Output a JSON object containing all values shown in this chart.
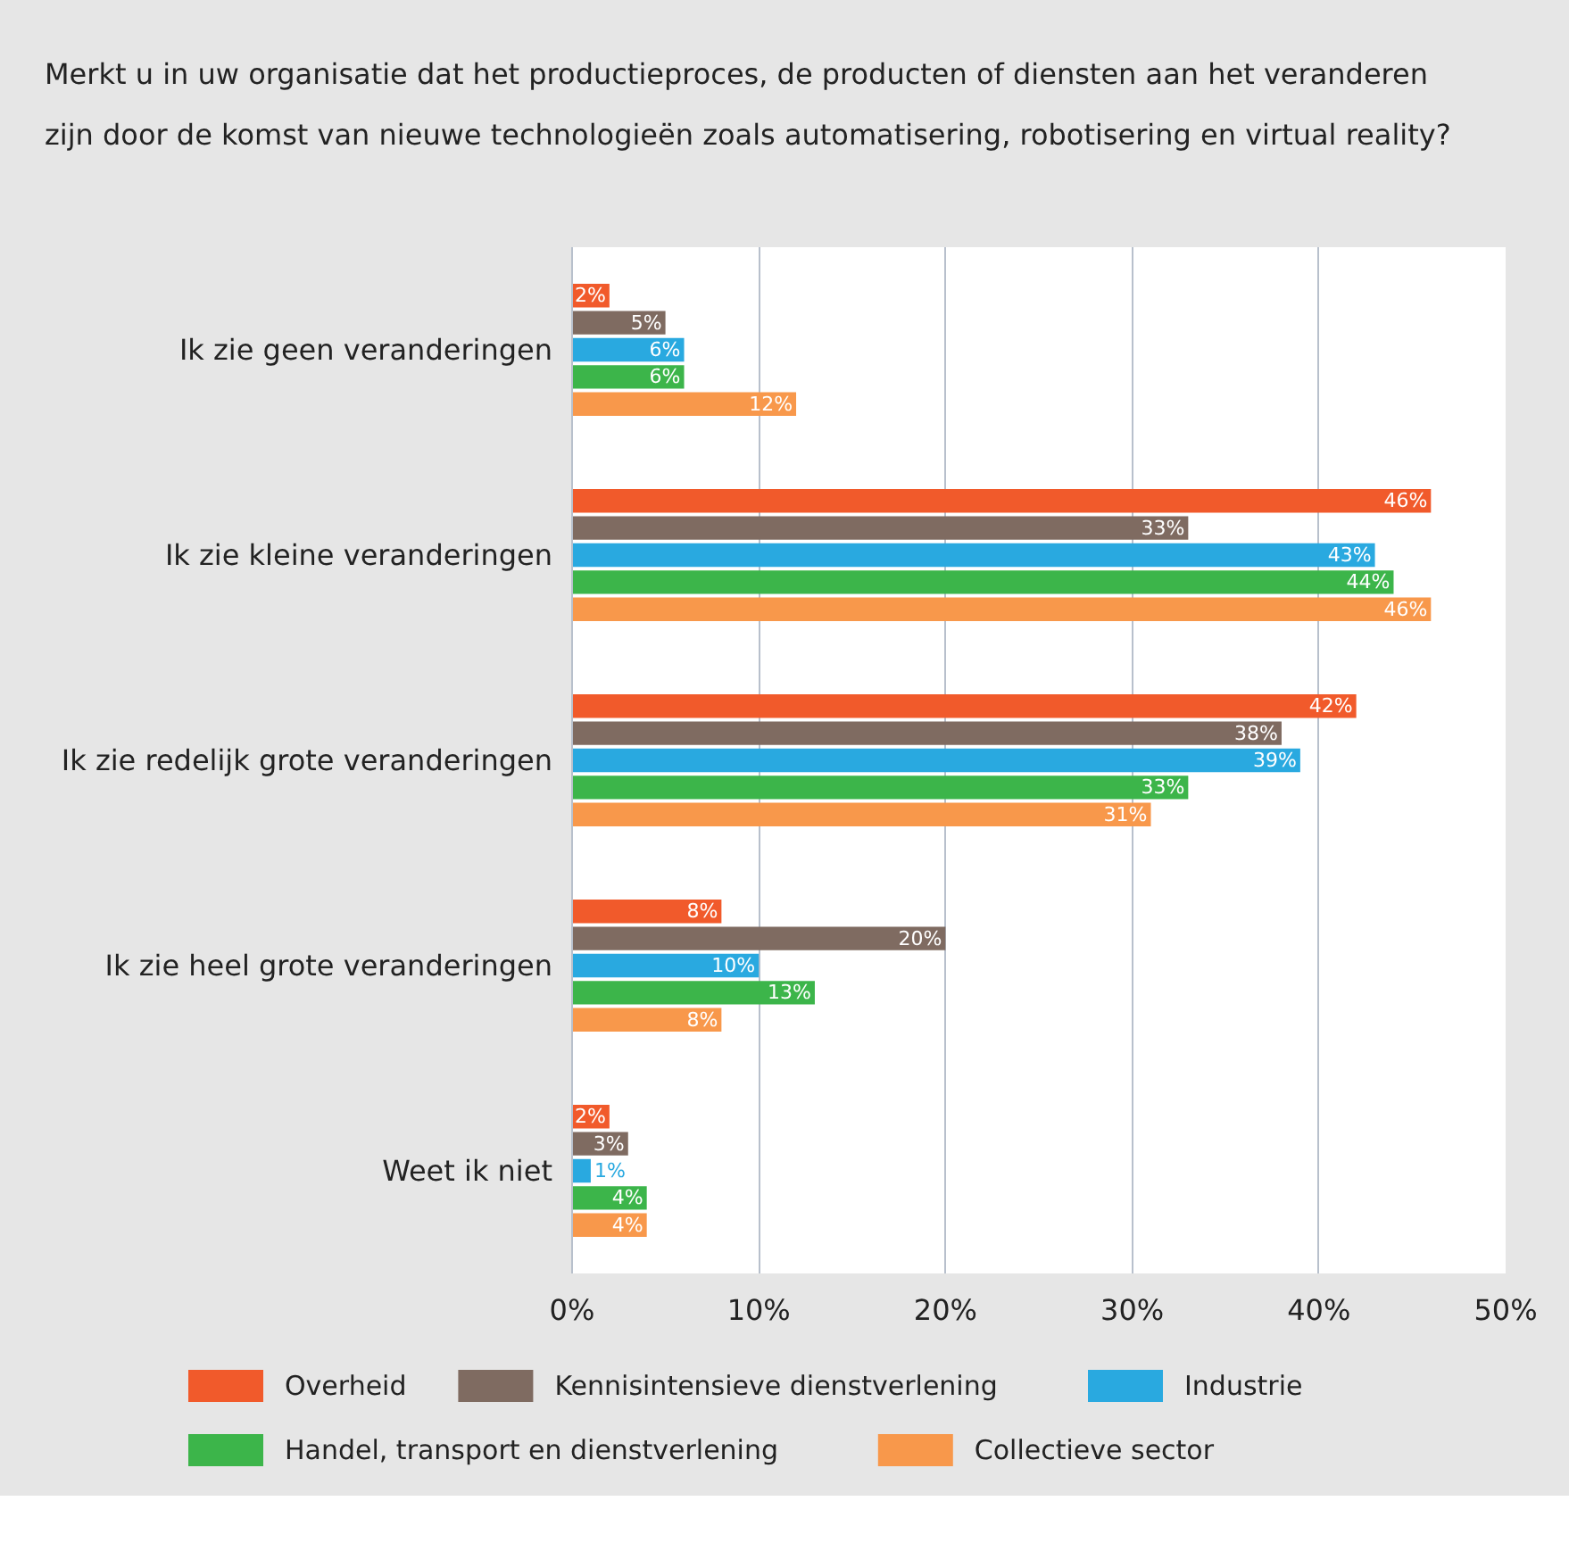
{
  "chart_data": {
    "type": "bar",
    "orientation": "horizontal",
    "title": "Merkt u in uw organisatie dat het productieproces, de producten of diensten aan het veranderen zijn door de komst van nieuwe technologieën zoals automatisering, robotisering en virtual reality?",
    "categories": [
      "Ik zie geen veranderingen",
      "Ik zie kleine veranderingen",
      "Ik zie redelijk grote veranderingen",
      "Ik zie heel grote veranderingen",
      "Weet ik niet"
    ],
    "series": [
      {
        "name": "Overheid",
        "color": "#f15a2b",
        "values": [
          2,
          46,
          42,
          8,
          2
        ],
        "value_labels": [
          "2%",
          "46%",
          "42%",
          "8%",
          "2%"
        ]
      },
      {
        "name": "Kennisintensieve dienstverlening",
        "color": "#7f6b61",
        "values": [
          5,
          33,
          38,
          20,
          3
        ],
        "value_labels": [
          "5%",
          "33%",
          "38%",
          "20%",
          "3%"
        ]
      },
      {
        "name": "Industrie",
        "color": "#29a9e0",
        "values": [
          6,
          43,
          39,
          10,
          1
        ],
        "value_labels": [
          "6%",
          "43%",
          "39%",
          "10%",
          "1%"
        ]
      },
      {
        "name": "Handel, transport en dienstverlening",
        "color": "#3cb54a",
        "values": [
          6,
          44,
          33,
          13,
          4
        ],
        "value_labels": [
          "6%",
          "44%",
          "33%",
          "13%",
          "4%"
        ]
      },
      {
        "name": "Collectieve sector",
        "color": "#f8984b",
        "values": [
          12,
          46,
          31,
          8,
          4
        ],
        "value_labels": [
          "12%",
          "46%",
          "31%",
          "8%",
          "4%"
        ]
      }
    ],
    "xlim": [
      0,
      50
    ],
    "xticks": [
      {
        "value": 0,
        "label": "0%"
      },
      {
        "value": 10,
        "label": "10%"
      },
      {
        "value": 20,
        "label": "20%"
      },
      {
        "value": 30,
        "label": "30%"
      },
      {
        "value": 40,
        "label": "40%"
      },
      {
        "value": 50,
        "label": "50%"
      }
    ],
    "grid": "x",
    "legend": "bottom"
  }
}
